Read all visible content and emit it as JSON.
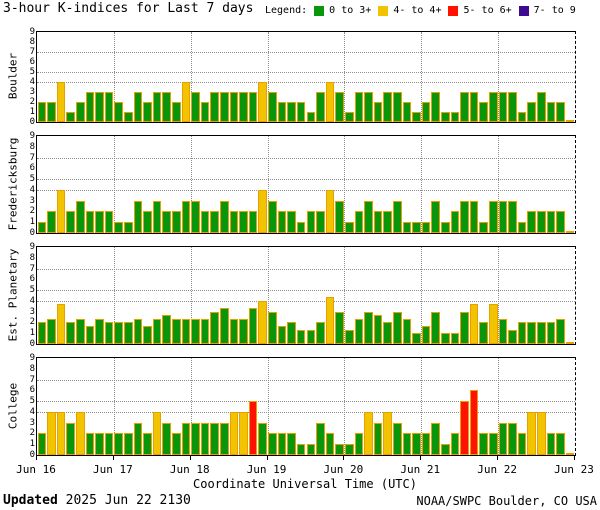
{
  "title": "3-hour K-indices for Last 7 days",
  "legend": {
    "label": "Legend:",
    "items": [
      {
        "label": "0 to 3+",
        "color": "#0A960A"
      },
      {
        "label": "4- to 4+",
        "color": "#F2C300"
      },
      {
        "label": "5- to 6+",
        "color": "#FF1200"
      },
      {
        "label": "7- to 9",
        "color": "#3D0A91"
      }
    ]
  },
  "x_axis": {
    "label": "Coordinate Universal Time (UTC)",
    "ticks": [
      "Jun 16",
      "Jun 17",
      "Jun 18",
      "Jun 19",
      "Jun 20",
      "Jun 21",
      "Jun 22",
      "Jun 23"
    ]
  },
  "y_axis": {
    "ticks": [
      0,
      1,
      2,
      3,
      4,
      5,
      6,
      7,
      8,
      9
    ],
    "gridlines": [
      4,
      5,
      7
    ]
  },
  "footer": {
    "updated_label": "Updated",
    "updated_value": " 2025 Jun 22 2130",
    "credit": "NOAA/SWPC Boulder, CO USA"
  },
  "colors": {
    "green": "#0A960A",
    "yellow": "#F2C300",
    "red": "#FF1200",
    "purple": "#3D0A91",
    "bar_border": "#E8A000",
    "grid": "#909090"
  },
  "chart_data": {
    "type": "bar",
    "title": "3-hour K-indices for Last 7 days",
    "xlabel": "Coordinate Universal Time (UTC)",
    "ylim": [
      0,
      9
    ],
    "interval_hours": 3,
    "bars_per_day": 8,
    "days": [
      "Jun 16",
      "Jun 17",
      "Jun 18",
      "Jun 19",
      "Jun 20",
      "Jun 21",
      "Jun 22",
      "Jun 23"
    ],
    "color_rule": "K<4- green, 4- to 4+ yellow, 5- to 6+ red, 7- to 9 purple; final 0.2 entries are the partial unfinished interval",
    "series": [
      {
        "name": "Boulder",
        "values": [
          2,
          2,
          4,
          1,
          2,
          3,
          3,
          3,
          2,
          1,
          3,
          2,
          3,
          3,
          2,
          4,
          3,
          2,
          3,
          3,
          3,
          3,
          3,
          4,
          3,
          2,
          2,
          2,
          1,
          3,
          4,
          3,
          1,
          3,
          3,
          2,
          3,
          3,
          2,
          1,
          2,
          3,
          1,
          1,
          3,
          3,
          2,
          3,
          3,
          3,
          1,
          2,
          3,
          2,
          2,
          0.2
        ]
      },
      {
        "name": "Fredericksburg",
        "values": [
          1,
          2,
          4,
          2,
          3,
          2,
          2,
          2,
          1,
          1,
          3,
          2,
          3,
          2,
          2,
          3,
          3,
          2,
          2,
          3,
          2,
          2,
          2,
          4,
          3,
          2,
          2,
          1,
          2,
          2,
          4,
          3,
          1,
          2,
          3,
          2,
          2,
          3,
          1,
          1,
          1,
          3,
          1,
          2,
          3,
          3,
          1,
          3,
          3,
          3,
          1,
          2,
          2,
          2,
          2,
          0.2
        ]
      },
      {
        "name": "Est. Planetary",
        "values": [
          2,
          2.33,
          3.67,
          2,
          2.33,
          1.67,
          2.33,
          2,
          2,
          2,
          2.33,
          1.67,
          2.33,
          2.67,
          2.33,
          2.33,
          2.33,
          2.33,
          3,
          3.33,
          2.33,
          2.33,
          3.33,
          4,
          3,
          1.67,
          2,
          1.33,
          1.33,
          2,
          4.33,
          3,
          1.33,
          2.33,
          3,
          2.67,
          2,
          3,
          2.33,
          1,
          1.67,
          3,
          1,
          1,
          3,
          3.67,
          2,
          3.67,
          2.33,
          1.33,
          2,
          2,
          2,
          2,
          2.33,
          0.2
        ]
      },
      {
        "name": "College",
        "values": [
          2,
          4,
          4,
          3,
          4,
          2,
          2,
          2,
          2,
          2,
          3,
          2,
          4,
          3,
          2,
          3,
          3,
          3,
          3,
          3,
          4,
          4,
          5,
          3,
          2,
          2,
          2,
          1,
          1,
          3,
          2,
          1,
          1,
          2,
          4,
          3,
          4,
          3,
          2,
          2,
          2,
          3,
          1,
          2,
          5,
          6,
          2,
          2,
          3,
          3,
          2,
          4,
          4,
          2,
          2,
          0.2
        ]
      }
    ]
  }
}
